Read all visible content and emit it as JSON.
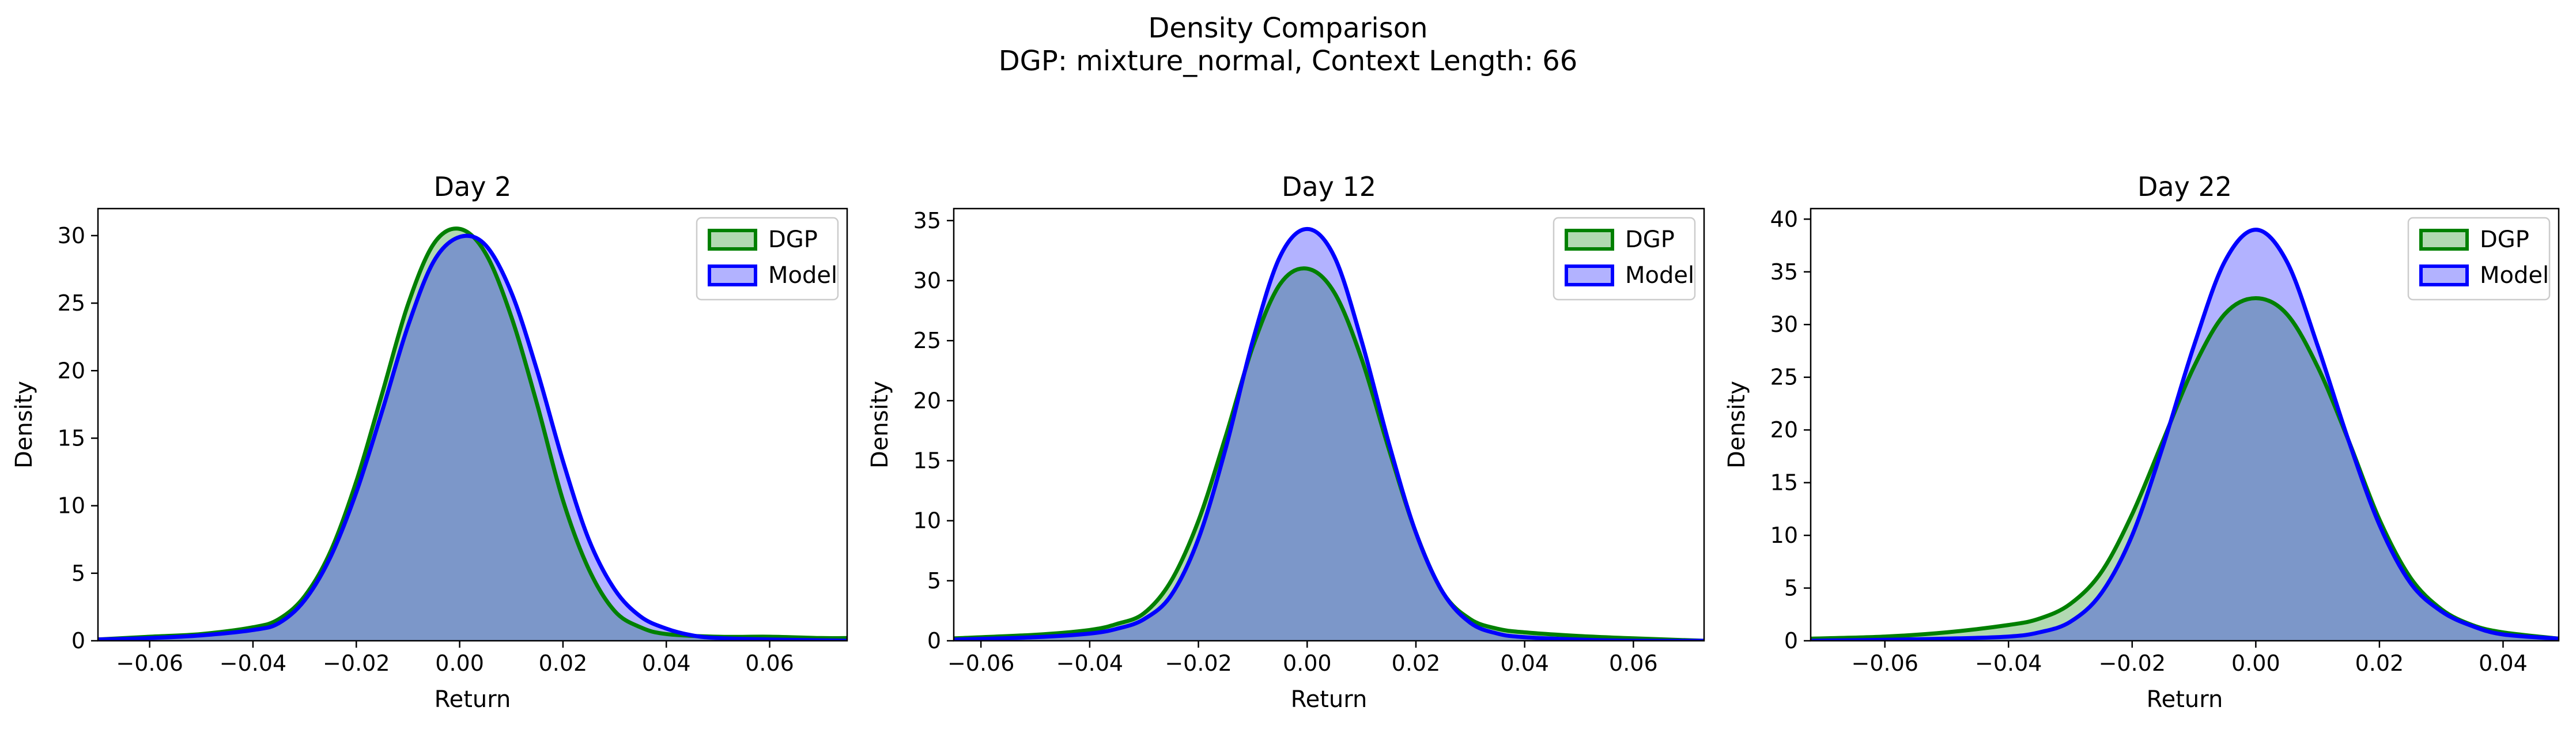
{
  "figure": {
    "title_line1": "Density Comparison",
    "title_line2": "DGP: mixture_normal, Context Length: 66"
  },
  "colors": {
    "dgp": "#008000",
    "model": "#0000ff",
    "axis": "#000000"
  },
  "chart_data": [
    {
      "type": "area",
      "title": "Day 2",
      "xlabel": "Return",
      "ylabel": "Density",
      "xlim": [
        -0.07,
        0.075
      ],
      "ylim": [
        0,
        32
      ],
      "xticks": [
        -0.06,
        -0.04,
        -0.02,
        0.0,
        0.02,
        0.04,
        0.06
      ],
      "xtick_labels": [
        "−0.06",
        "−0.04",
        "−0.02",
        "0.00",
        "0.02",
        "0.04",
        "0.06"
      ],
      "yticks": [
        0,
        5,
        10,
        15,
        20,
        25,
        30
      ],
      "ytick_labels": [
        "0",
        "5",
        "10",
        "15",
        "20",
        "25",
        "30"
      ],
      "legend": "top-right",
      "grid": false,
      "series": [
        {
          "name": "DGP",
          "color": "#008000",
          "x": [
            -0.07,
            -0.06,
            -0.05,
            -0.04,
            -0.035,
            -0.03,
            -0.025,
            -0.02,
            -0.015,
            -0.01,
            -0.005,
            0.0,
            0.005,
            0.01,
            0.015,
            0.02,
            0.025,
            0.03,
            0.035,
            0.04,
            0.05,
            0.06,
            0.07,
            0.075
          ],
          "y": [
            0.1,
            0.3,
            0.5,
            1.0,
            1.6,
            3.3,
            6.6,
            11.8,
            18.3,
            24.9,
            29.4,
            30.5,
            28.7,
            24.0,
            17.5,
            10.4,
            5.3,
            2.2,
            1.0,
            0.5,
            0.3,
            0.3,
            0.2,
            0.2
          ]
        },
        {
          "name": "Model",
          "color": "#0000ff",
          "x": [
            -0.07,
            -0.06,
            -0.05,
            -0.04,
            -0.035,
            -0.03,
            -0.025,
            -0.02,
            -0.015,
            -0.01,
            -0.005,
            0.0,
            0.005,
            0.01,
            0.015,
            0.02,
            0.025,
            0.03,
            0.035,
            0.04,
            0.045,
            0.05,
            0.06,
            0.075
          ],
          "y": [
            0.1,
            0.2,
            0.4,
            0.8,
            1.3,
            3.0,
            6.2,
            11.0,
            17.0,
            23.3,
            28.1,
            29.9,
            29.3,
            25.8,
            20.0,
            13.3,
            7.5,
            3.8,
            1.8,
            0.9,
            0.4,
            0.2,
            0.1,
            0.0
          ]
        }
      ]
    },
    {
      "type": "area",
      "title": "Day 12",
      "xlabel": "Return",
      "ylabel": "Density",
      "xlim": [
        -0.065,
        0.073
      ],
      "ylim": [
        0,
        36
      ],
      "xticks": [
        -0.06,
        -0.04,
        -0.02,
        0.0,
        0.02,
        0.04,
        0.06
      ],
      "xtick_labels": [
        "−0.06",
        "−0.04",
        "−0.02",
        "0.00",
        "0.02",
        "0.04",
        "0.06"
      ],
      "yticks": [
        0,
        5,
        10,
        15,
        20,
        25,
        30,
        35
      ],
      "ytick_labels": [
        "0",
        "5",
        "10",
        "15",
        "20",
        "25",
        "30",
        "35"
      ],
      "legend": "top-right",
      "grid": false,
      "series": [
        {
          "name": "DGP",
          "color": "#008000",
          "x": [
            -0.065,
            -0.05,
            -0.04,
            -0.035,
            -0.03,
            -0.025,
            -0.02,
            -0.015,
            -0.01,
            -0.005,
            0.0,
            0.005,
            0.01,
            0.015,
            0.02,
            0.025,
            0.03,
            0.035,
            0.04,
            0.05,
            0.06,
            0.073
          ],
          "y": [
            0.2,
            0.5,
            0.9,
            1.4,
            2.3,
            5.0,
            10.0,
            17.0,
            24.5,
            29.7,
            31.0,
            29.0,
            23.5,
            16.0,
            9.0,
            4.0,
            1.8,
            1.0,
            0.7,
            0.4,
            0.2,
            0.0
          ]
        },
        {
          "name": "Model",
          "color": "#0000ff",
          "x": [
            -0.065,
            -0.05,
            -0.04,
            -0.035,
            -0.03,
            -0.025,
            -0.02,
            -0.015,
            -0.01,
            -0.005,
            0.0,
            0.005,
            0.01,
            0.015,
            0.02,
            0.025,
            0.03,
            0.035,
            0.04,
            0.05,
            0.06,
            0.073
          ],
          "y": [
            0.1,
            0.3,
            0.6,
            1.0,
            1.8,
            3.8,
            8.5,
            16.0,
            25.0,
            32.0,
            34.3,
            32.0,
            25.0,
            16.5,
            9.0,
            4.0,
            1.5,
            0.6,
            0.3,
            0.1,
            0.0,
            0.0
          ]
        }
      ]
    },
    {
      "type": "area",
      "title": "Day 22",
      "xlabel": "Return",
      "ylabel": "Density",
      "xlim": [
        -0.072,
        0.049
      ],
      "ylim": [
        0,
        41
      ],
      "xticks": [
        -0.06,
        -0.04,
        -0.02,
        0.0,
        0.02,
        0.04
      ],
      "xtick_labels": [
        "−0.06",
        "−0.04",
        "−0.02",
        "0.00",
        "0.02",
        "0.04"
      ],
      "yticks": [
        0,
        5,
        10,
        15,
        20,
        25,
        30,
        35,
        40
      ],
      "ytick_labels": [
        "0",
        "5",
        "10",
        "15",
        "20",
        "25",
        "30",
        "35",
        "40"
      ],
      "legend": "top-right",
      "grid": false,
      "series": [
        {
          "name": "DGP",
          "color": "#008000",
          "x": [
            -0.072,
            -0.06,
            -0.05,
            -0.04,
            -0.035,
            -0.03,
            -0.025,
            -0.02,
            -0.015,
            -0.01,
            -0.005,
            0.0,
            0.005,
            0.01,
            0.015,
            0.02,
            0.025,
            0.03,
            0.035,
            0.04,
            0.049
          ],
          "y": [
            0.2,
            0.4,
            0.8,
            1.5,
            2.1,
            3.5,
            6.5,
            12.0,
            19.0,
            26.0,
            31.0,
            32.5,
            31.0,
            26.0,
            19.0,
            11.5,
            6.0,
            3.0,
            1.5,
            0.8,
            0.2
          ]
        },
        {
          "name": "Model",
          "color": "#0000ff",
          "x": [
            -0.072,
            -0.06,
            -0.05,
            -0.04,
            -0.035,
            -0.03,
            -0.025,
            -0.02,
            -0.015,
            -0.01,
            -0.005,
            0.0,
            0.005,
            0.01,
            0.015,
            0.02,
            0.025,
            0.03,
            0.035,
            0.04,
            0.049
          ],
          "y": [
            0.0,
            0.1,
            0.2,
            0.4,
            0.8,
            1.8,
            4.5,
            10.0,
            18.5,
            28.0,
            36.0,
            39.0,
            36.0,
            28.0,
            19.0,
            11.0,
            5.5,
            2.8,
            1.4,
            0.6,
            0.2
          ]
        }
      ]
    }
  ]
}
